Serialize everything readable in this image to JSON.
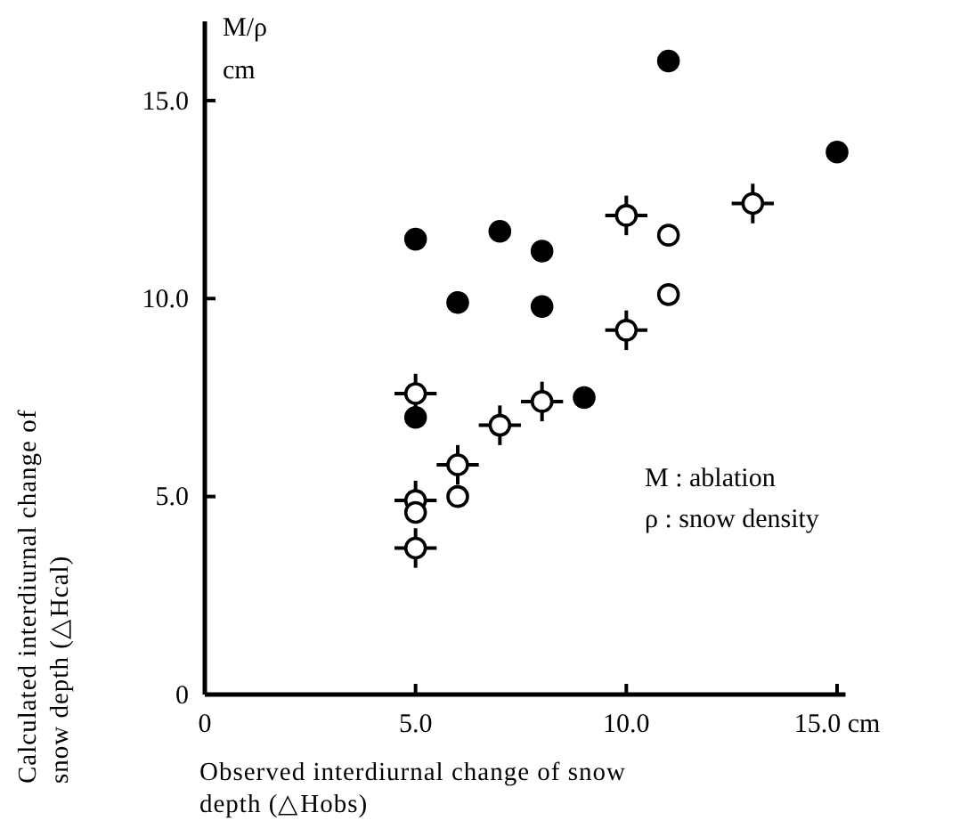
{
  "chart_data": {
    "type": "scatter",
    "xlabel": "Observed interdiurnal change of snow depth (△Hobs)",
    "ylabel": "Calculated interdiurnal change of snow depth (△Hcal)",
    "xlim": [
      0,
      15.2
    ],
    "ylim": [
      0,
      17
    ],
    "xticks": [
      0,
      {
        "value": 5,
        "label": "5.0"
      },
      {
        "value": 10,
        "label": "10.0"
      },
      {
        "value": 15,
        "label": "15.0 cm"
      }
    ],
    "yticks": [
      0,
      {
        "value": 5,
        "label": "5.0"
      },
      {
        "value": 10,
        "label": "10.0"
      },
      {
        "value": 15,
        "label": "15.0"
      }
    ],
    "grid": false,
    "annotations": [
      "M/ρ",
      "cm",
      "M : ablation",
      "ρ : snow density"
    ],
    "series": [
      {
        "color": "#000000",
        "marker": "circle",
        "x": [
          5,
          7,
          8,
          6,
          8,
          11,
          15,
          9,
          5
        ],
        "values": [
          11.5,
          11.7,
          11.2,
          9.9,
          9.8,
          16.0,
          13.7,
          7.5,
          7.0
        ]
      },
      {
        "color": "#ffffff",
        "marker": "circle",
        "x": [
          10,
          13,
          10,
          5,
          8,
          7,
          6,
          5,
          5
        ],
        "values": [
          12.1,
          12.4,
          9.2,
          7.6,
          7.4,
          6.8,
          5.8,
          4.9,
          3.7
        ],
        "errors": [
          0.5,
          0.5,
          0.5,
          0.5,
          0.5,
          0.5,
          0.5,
          0.5,
          0.5
        ],
        "xerrors": [
          0.5,
          0.5,
          0.5,
          0.5,
          0.5,
          0.5,
          0.5,
          0.5,
          0.5
        ]
      },
      {
        "color": "#ffffff",
        "marker": "circle",
        "x": [
          11,
          11,
          6,
          5
        ],
        "values": [
          11.6,
          10.1,
          5.0,
          4.6
        ]
      }
    ]
  }
}
